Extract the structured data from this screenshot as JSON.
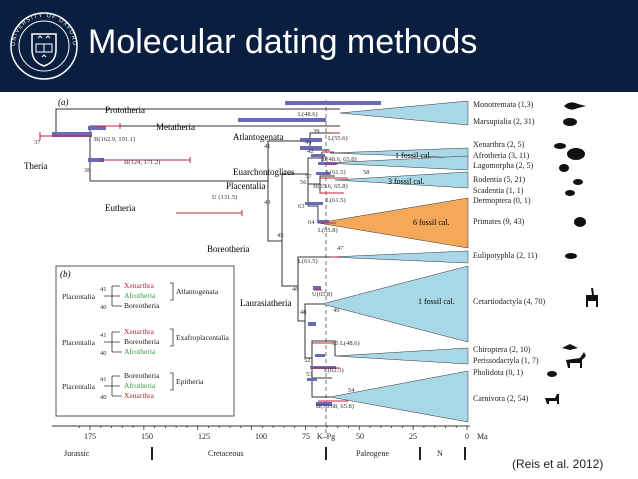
{
  "header": {
    "title": "Molecular dating methods",
    "logo_text": "UNIVERSITY OF OXFORD",
    "background": "#0a1f3f"
  },
  "figure": {
    "panel_a_label": "(a)",
    "panel_b_label": "(b)",
    "clade_labels": {
      "prototheria": "Prototheria",
      "metatheria": "Metatheria",
      "theria": "Theria",
      "eutheria": "Eutheria",
      "atlantogenata": "Atlantogenata",
      "euarchontoglires": "Euarchontoglires",
      "placentalia": "Placentalia",
      "boreotheria": "Boreotheria",
      "laurasiatheria": "Laurasiatheria"
    },
    "calibrations": {
      "b_metatheria": "B(162.9, 191.1)",
      "b_eutheria": "B(124, 171.2)",
      "u_placentalia": "U (131.5)",
      "l_486": "L(48.6)",
      "l_556": "L(55.6)",
      "b_486_658": "B(48.6, 65.8)",
      "l_615_a": "L(61.5)",
      "b_556_658": "B(55.6, 65.8)",
      "l_615_b": "L(61.5)",
      "l_558": "L(55.8)",
      "l_615_c": "L(61.5)",
      "u_658": "U(65.8)",
      "l_486_b": "L(48.6)",
      "l_625": "L(62.5)",
      "b_3968_658": "B(39.68, 65.8)"
    },
    "node_numbers": {
      "n37": "37",
      "n38": "38",
      "n39": "39",
      "n41": "41",
      "n42": "42",
      "n44": "44",
      "n40": "40",
      "n45": "45",
      "n46": "46",
      "n47": "47",
      "n48": "48",
      "n49": "49",
      "n50": "50",
      "n51": "51",
      "n52": "52",
      "n53": "53",
      "n54": "54",
      "n55": "55",
      "n56": "56",
      "n57": "57",
      "n58": "58",
      "n63": "63",
      "n64": "64"
    },
    "taxa": [
      "Monotremata (1,3)",
      "Marsupialia (2, 31)",
      "Xenarthra (2, 5)",
      "Afrotheria (3, 11)",
      "Lagomorpha (2, 5)",
      "Rodentia (5, 21)",
      "Scadentia (1, 1)",
      "Dermoptera (0, 1)",
      "Primates (9, 43)",
      "Eulipotyphla (2, 11)",
      "Cetartiodactyla (4, 70)",
      "Chiroptera (2, 10)",
      "Perissodactyla (1, 7)",
      "Pholidota (0, 1)",
      "Carnivora (2, 54)"
    ],
    "fossil_labels": {
      "one_a": "1 fossil cal.",
      "three": "3 fossil cal.",
      "six": "6 fossil cal.",
      "one_b": "1 fossil cal."
    },
    "axis": {
      "ticks": [
        "175",
        "150",
        "125",
        "100",
        "75",
        "50",
        "25",
        "0"
      ],
      "unit": "Ma",
      "kpg": "K–Pg",
      "periods": [
        "Jurassic",
        "Cretaceous",
        "Paleogene",
        "N"
      ]
    },
    "inset": {
      "placentalia": "Placentalia",
      "groups": [
        {
          "n41": "41",
          "n40": "40",
          "tips": [
            "Xenarthra",
            "Afrotheria",
            "Boreotheria"
          ],
          "name": "Atlantogenata"
        },
        {
          "n41": "41",
          "n40": "40",
          "tips": [
            "Xenarthra",
            "Boreotheria",
            "Afrotheria"
          ],
          "name": "Exafroplacentalia"
        },
        {
          "n41": "41",
          "n40": "40",
          "tips": [
            "Boreotheria",
            "Afrotheria",
            "Xenarthra"
          ],
          "name": "Epitheria"
        }
      ]
    },
    "colors": {
      "wedge_blue": "#a8d8e8",
      "wedge_orange": "#f5a85a",
      "bar_purple": "#6a6ab8",
      "red": "#c0223a",
      "green": "#2e9a3e"
    }
  },
  "citation": "(Reis et al. 2012)"
}
